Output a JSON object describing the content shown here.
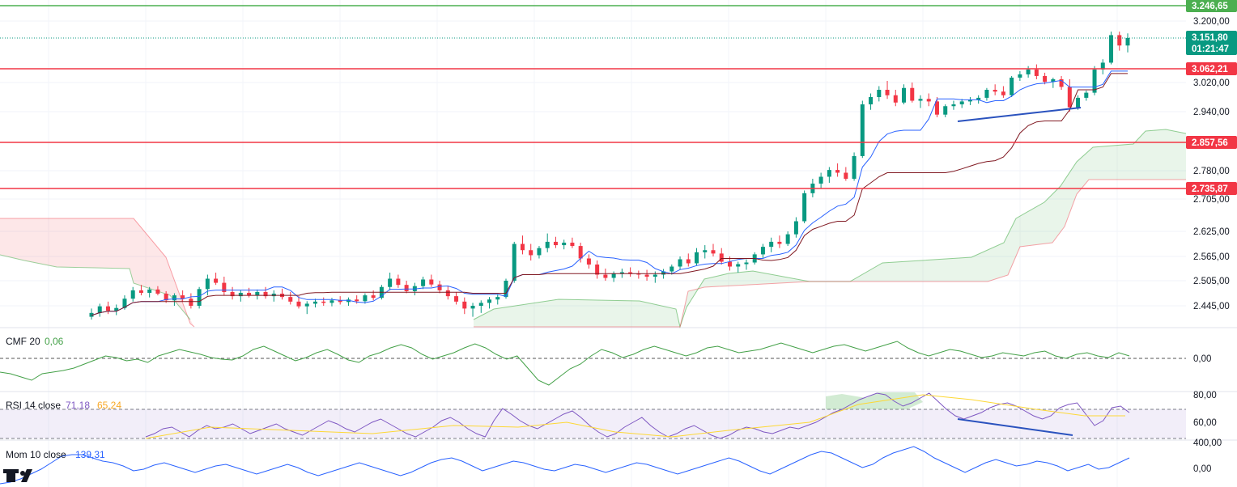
{
  "chart_data": {
    "type": "candlestick",
    "price_axis": {
      "ticks": [
        "3.200,00",
        "3.020,00",
        "2.940,00",
        "2.780,00",
        "2.705,00",
        "2.625,00",
        "2.565,00",
        "2.505,00",
        "2.445,00"
      ],
      "tick_values": [
        3200,
        3020,
        2940,
        2780,
        2705,
        2625,
        2565,
        2505,
        2445
      ],
      "range": [
        2420,
        3260
      ]
    },
    "levels": [
      {
        "value": 3246.65,
        "label": "3.246,65",
        "color": "#4caf50"
      },
      {
        "value": 3062.21,
        "label": "3.062,21",
        "color": "#f23645"
      },
      {
        "value": 2857.56,
        "label": "2.857,56",
        "color": "#f23645"
      },
      {
        "value": 2735.87,
        "label": "2.735,87",
        "color": "#f23645"
      }
    ],
    "last_price": {
      "value": 3151.8,
      "label": "3.151,80",
      "countdown": "01:21:47",
      "color": "#089981"
    },
    "candles": [
      [
        2425,
        2440,
        2415,
        2432
      ],
      [
        2432,
        2450,
        2425,
        2444
      ],
      [
        2444,
        2455,
        2430,
        2436
      ],
      [
        2436,
        2448,
        2428,
        2441
      ],
      [
        2441,
        2470,
        2438,
        2462
      ],
      [
        2462,
        2490,
        2455,
        2482
      ],
      [
        2482,
        2495,
        2470,
        2476
      ],
      [
        2476,
        2490,
        2465,
        2484
      ],
      [
        2484,
        2492,
        2470,
        2474
      ],
      [
        2474,
        2480,
        2452,
        2458
      ],
      [
        2458,
        2475,
        2445,
        2470
      ],
      [
        2470,
        2482,
        2455,
        2462
      ],
      [
        2462,
        2475,
        2440,
        2445
      ],
      [
        2445,
        2490,
        2440,
        2485
      ],
      [
        2485,
        2520,
        2470,
        2510
      ],
      [
        2510,
        2525,
        2495,
        2500
      ],
      [
        2500,
        2515,
        2470,
        2478
      ],
      [
        2478,
        2490,
        2460,
        2468
      ],
      [
        2468,
        2482,
        2455,
        2476
      ],
      [
        2476,
        2488,
        2465,
        2470
      ],
      [
        2470,
        2484,
        2460,
        2478
      ],
      [
        2478,
        2490,
        2462,
        2468
      ],
      [
        2468,
        2482,
        2455,
        2474
      ],
      [
        2474,
        2486,
        2460,
        2466
      ],
      [
        2466,
        2478,
        2448,
        2455
      ],
      [
        2455,
        2468,
        2440,
        2444
      ],
      [
        2444,
        2456,
        2430,
        2450
      ],
      [
        2450,
        2462,
        2442,
        2455
      ],
      [
        2455,
        2465,
        2445,
        2452
      ],
      [
        2452,
        2464,
        2444,
        2458
      ],
      [
        2458,
        2468,
        2448,
        2454
      ],
      [
        2454,
        2465,
        2445,
        2460
      ],
      [
        2460,
        2470,
        2450,
        2456
      ],
      [
        2456,
        2475,
        2450,
        2470
      ],
      [
        2470,
        2482,
        2458,
        2464
      ],
      [
        2464,
        2495,
        2460,
        2490
      ],
      [
        2490,
        2525,
        2482,
        2510
      ],
      [
        2510,
        2520,
        2488,
        2495
      ],
      [
        2495,
        2505,
        2475,
        2480
      ],
      [
        2480,
        2500,
        2470,
        2492
      ],
      [
        2492,
        2515,
        2485,
        2508
      ],
      [
        2508,
        2520,
        2490,
        2496
      ],
      [
        2496,
        2505,
        2475,
        2482
      ],
      [
        2482,
        2492,
        2460,
        2468
      ],
      [
        2468,
        2478,
        2448,
        2455
      ],
      [
        2455,
        2465,
        2430,
        2440
      ],
      [
        2440,
        2452,
        2425,
        2445
      ],
      [
        2445,
        2458,
        2432,
        2452
      ],
      [
        2452,
        2466,
        2440,
        2460
      ],
      [
        2460,
        2472,
        2448,
        2466
      ],
      [
        2466,
        2510,
        2462,
        2505
      ],
      [
        2505,
        2600,
        2500,
        2595
      ],
      [
        2595,
        2615,
        2570,
        2580
      ],
      [
        2580,
        2595,
        2555,
        2568
      ],
      [
        2568,
        2590,
        2560,
        2585
      ],
      [
        2585,
        2620,
        2575,
        2600
      ],
      [
        2600,
        2612,
        2585,
        2592
      ],
      [
        2592,
        2605,
        2582,
        2598
      ],
      [
        2598,
        2610,
        2585,
        2590
      ],
      [
        2590,
        2598,
        2550,
        2560
      ],
      [
        2560,
        2570,
        2535,
        2545
      ],
      [
        2545,
        2555,
        2510,
        2520
      ],
      [
        2520,
        2535,
        2505,
        2512
      ],
      [
        2512,
        2528,
        2502,
        2522
      ],
      [
        2522,
        2535,
        2512,
        2526
      ],
      [
        2526,
        2538,
        2515,
        2522
      ],
      [
        2522,
        2530,
        2510,
        2520
      ],
      [
        2520,
        2532,
        2505,
        2515
      ],
      [
        2515,
        2528,
        2500,
        2520
      ],
      [
        2520,
        2534,
        2510,
        2528
      ],
      [
        2528,
        2545,
        2520,
        2540
      ],
      [
        2540,
        2565,
        2532,
        2558
      ],
      [
        2558,
        2572,
        2540,
        2548
      ],
      [
        2548,
        2585,
        2542,
        2575
      ],
      [
        2575,
        2592,
        2560,
        2580
      ],
      [
        2580,
        2595,
        2565,
        2572
      ],
      [
        2572,
        2585,
        2545,
        2552
      ],
      [
        2552,
        2565,
        2530,
        2540
      ],
      [
        2540,
        2552,
        2525,
        2546
      ],
      [
        2546,
        2558,
        2532,
        2550
      ],
      [
        2550,
        2575,
        2545,
        2570
      ],
      [
        2570,
        2595,
        2560,
        2588
      ],
      [
        2588,
        2610,
        2575,
        2600
      ],
      [
        2600,
        2615,
        2585,
        2595
      ],
      [
        2595,
        2625,
        2590,
        2618
      ],
      [
        2618,
        2660,
        2610,
        2650
      ],
      [
        2650,
        2730,
        2645,
        2722
      ],
      [
        2722,
        2760,
        2710,
        2748
      ],
      [
        2748,
        2775,
        2735,
        2765
      ],
      [
        2765,
        2790,
        2750,
        2782
      ],
      [
        2782,
        2800,
        2765,
        2775
      ],
      [
        2775,
        2790,
        2755,
        2760
      ],
      [
        2760,
        2830,
        2755,
        2820
      ],
      [
        2820,
        2970,
        2815,
        2960
      ],
      [
        2960,
        2990,
        2945,
        2980
      ],
      [
        2980,
        3010,
        2968,
        3000
      ],
      [
        3000,
        3025,
        2975,
        2985
      ],
      [
        2985,
        3000,
        2955,
        2965
      ],
      [
        2965,
        3015,
        2960,
        3005
      ],
      [
        3005,
        3020,
        2965,
        2970
      ],
      [
        2970,
        2985,
        2950,
        2975
      ],
      [
        2975,
        2990,
        2955,
        2968
      ],
      [
        2968,
        2980,
        2925,
        2932
      ],
      [
        2932,
        2960,
        2925,
        2955
      ],
      [
        2955,
        2970,
        2945,
        2960
      ],
      [
        2960,
        2975,
        2950,
        2968
      ],
      [
        2968,
        2980,
        2958,
        2972
      ],
      [
        2972,
        2985,
        2962,
        2978
      ],
      [
        2978,
        3005,
        2970,
        3000
      ],
      [
        3000,
        3015,
        2985,
        2995
      ],
      [
        2995,
        3010,
        2978,
        2985
      ],
      [
        2985,
        3040,
        2980,
        3035
      ],
      [
        3035,
        3055,
        3025,
        3045
      ],
      [
        3045,
        3070,
        3035,
        3060
      ],
      [
        3060,
        3075,
        3030,
        3040
      ],
      [
        3040,
        3050,
        3015,
        3022
      ],
      [
        3022,
        3035,
        3005,
        3030
      ],
      [
        3030,
        3040,
        3000,
        3008
      ],
      [
        3008,
        3030,
        2940,
        2952
      ],
      [
        2952,
        2985,
        2945,
        2978
      ],
      [
        2978,
        2998,
        2970,
        2992
      ],
      [
        2992,
        3070,
        2985,
        3060
      ],
      [
        3060,
        3090,
        3045,
        3080
      ],
      [
        3080,
        3170,
        3075,
        3160
      ],
      [
        3160,
        3170,
        3115,
        3130
      ],
      [
        3130,
        3165,
        3110,
        3152
      ]
    ]
  },
  "indicators": {
    "cmf": {
      "name": "CMF 20",
      "value": "0,06",
      "zero_label": "0,00"
    },
    "rsi": {
      "name": "RSI 14 close",
      "value": "71,18",
      "ma_value": "65,24",
      "ticks": [
        "80,00",
        "60,00"
      ]
    },
    "mom": {
      "name": "Mom 10 close",
      "value": "139,31",
      "ticks": [
        "400,00",
        "0,00"
      ]
    }
  },
  "colors": {
    "bull": "#089981",
    "bear": "#f23645",
    "tenkan": "#2962ff",
    "kijun": "#801922",
    "cloud_bull": "#4caf50",
    "cloud_bear": "#f23645",
    "cmf_line": "#43a047",
    "rsi_line": "#7e57c2",
    "rsi_ma": "#fdd835",
    "mom_line": "#2962ff",
    "trend_line": "#2a52be"
  },
  "logo": "TV"
}
